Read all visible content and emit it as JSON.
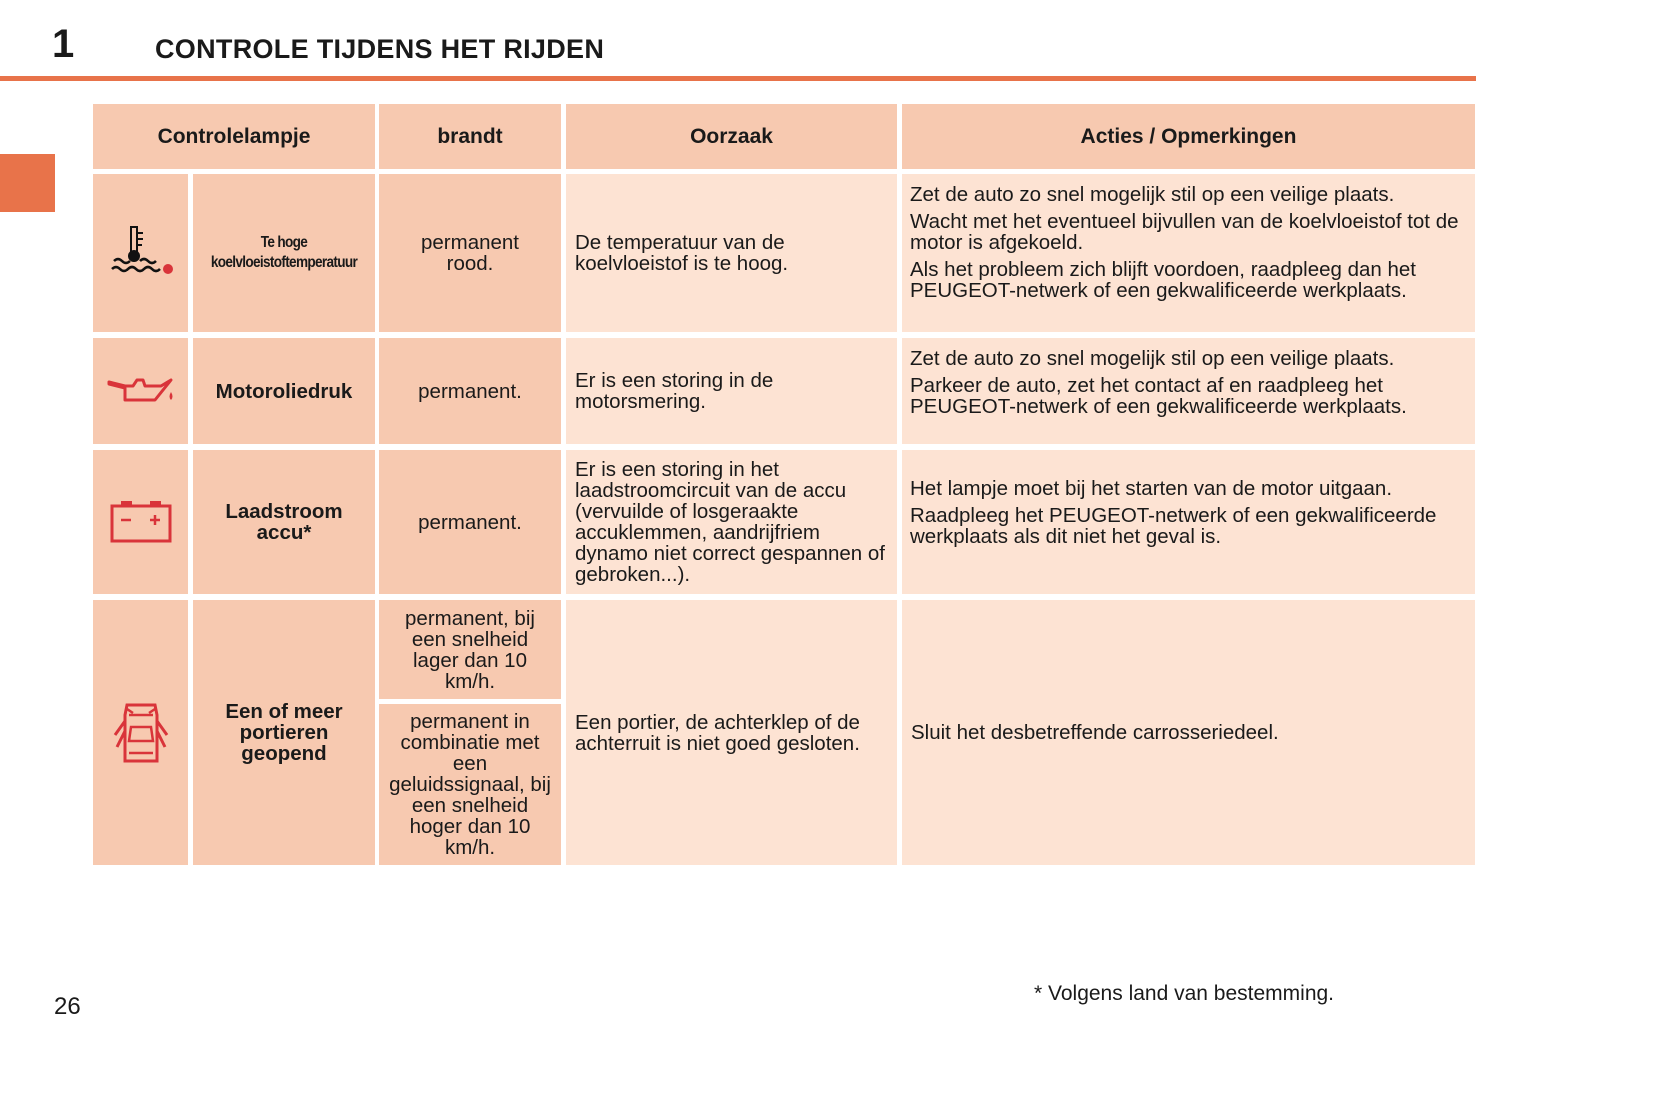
{
  "header": {
    "chapter": "1",
    "title": "CONTROLE TIJDENS HET RIJDEN"
  },
  "colors": {
    "accent": "#e8734a",
    "cell_dark": "#f7c9b0",
    "cell_light": "#fde3d3",
    "icon_red": "#d9343a"
  },
  "table": {
    "columns": [
      "Controlelampje",
      "brandt",
      "Oorzaak",
      "Acties / Opmerkingen"
    ],
    "rows": [
      {
        "icon": "coolant-temperature-icon",
        "name": "Te hoge koelvloeistoftemperatuur",
        "brandt": [
          "permanent rood."
        ],
        "oorzaak": "De temperatuur van de koelvloeistof is te hoog.",
        "acties": [
          "Zet de auto zo snel mogelijk stil op een veilige plaats.",
          "Wacht met het eventueel bijvullen van de koelvloeistof tot de motor is afgekoeld.",
          "Als het probleem zich blijft voordoen, raadpleeg dan het PEUGEOT-netwerk of een gekwalificeerde werkplaats."
        ]
      },
      {
        "icon": "oil-pressure-icon",
        "name": "Motoroliedruk",
        "brandt": [
          "permanent."
        ],
        "oorzaak": "Er is een storing in de motorsmering.",
        "acties": [
          "Zet de auto zo snel mogelijk stil op een veilige plaats.",
          "Parkeer de auto, zet het contact af en raadpleeg het PEUGEOT-netwerk of een gekwalificeerde werkplaats."
        ]
      },
      {
        "icon": "battery-icon",
        "name": "Laadstroom accu*",
        "brandt": [
          "permanent."
        ],
        "oorzaak": "Er is een storing in het laadstroomcircuit van de accu (vervuilde of losgeraakte accuklemmen, aandrijfriem dynamo niet correct gespannen of gebroken...).",
        "acties": [
          "Het lampje moet bij het starten van de motor uitgaan.",
          "Raadpleeg het PEUGEOT-netwerk of een gekwalificeerde werkplaats als dit niet het geval is."
        ]
      },
      {
        "icon": "door-open-icon",
        "name": "Een of meer portieren geopend",
        "brandt": [
          "permanent, bij een snelheid lager dan 10 km/h.",
          "permanent in combinatie met een geluidssignaal, bij een snelheid hoger dan 10 km/h."
        ],
        "oorzaak": "Een portier, de achterklep of de achterruit is niet goed gesloten.",
        "acties": [
          "Sluit het desbetreffende carrosseriedeel."
        ]
      }
    ]
  },
  "footer": {
    "page_number": "26",
    "footnote": "* Volgens land van bestemming."
  }
}
